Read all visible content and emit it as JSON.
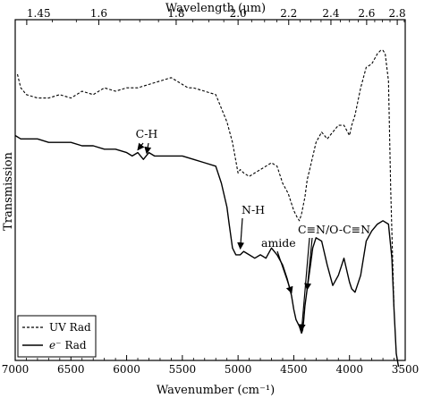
{
  "chart_data": {
    "type": "line",
    "title": "",
    "xlabel": "Wavenumber (cm⁻¹)",
    "x2label": "Wavelength (μm)",
    "ylabel": "Transmission",
    "xlim": [
      7000,
      3500
    ],
    "x_reversed": true,
    "ylim": [
      0,
      1
    ],
    "y_ticks_labeled": false,
    "grid": false,
    "legend_position": "bottom-left",
    "x_ticks": [
      7000,
      6500,
      6000,
      5500,
      5000,
      4500,
      4000,
      3500
    ],
    "x_tick_labels": [
      "7000",
      "6500",
      "6000",
      "5500",
      "5000",
      "4500",
      "4000",
      "3500"
    ],
    "x2_ticks": [
      1.45,
      1.6,
      1.8,
      2.0,
      2.2,
      2.4,
      2.6,
      2.8
    ],
    "x2_tick_labels": [
      "1.45",
      "1.6",
      "1.8",
      "2.0",
      "2.2",
      "2.4",
      "2.6",
      "2.8"
    ],
    "series": [
      {
        "name": "UV Rad",
        "style": "dashed",
        "x": [
          6980,
          6950,
          6900,
          6800,
          6700,
          6600,
          6500,
          6400,
          6300,
          6200,
          6100,
          6000,
          5900,
          5800,
          5700,
          5600,
          5500,
          5450,
          5400,
          5300,
          5200,
          5100,
          5050,
          5000,
          4980,
          4950,
          4900,
          4850,
          4800,
          4750,
          4700,
          4650,
          4600,
          4550,
          4500,
          4470,
          4450,
          4430,
          4400,
          4380,
          4350,
          4300,
          4250,
          4200,
          4150,
          4100,
          4050,
          4000,
          3980,
          3950,
          3900,
          3850,
          3800,
          3750,
          3720,
          3700,
          3680,
          3650,
          3630,
          3600
        ],
        "y": [
          0.84,
          0.8,
          0.78,
          0.77,
          0.77,
          0.78,
          0.77,
          0.79,
          0.78,
          0.8,
          0.79,
          0.8,
          0.8,
          0.81,
          0.82,
          0.83,
          0.81,
          0.8,
          0.8,
          0.79,
          0.78,
          0.7,
          0.64,
          0.55,
          0.56,
          0.55,
          0.54,
          0.55,
          0.56,
          0.57,
          0.58,
          0.57,
          0.52,
          0.49,
          0.44,
          0.42,
          0.41,
          0.43,
          0.48,
          0.53,
          0.57,
          0.64,
          0.67,
          0.65,
          0.67,
          0.69,
          0.69,
          0.66,
          0.69,
          0.72,
          0.8,
          0.86,
          0.87,
          0.9,
          0.91,
          0.91,
          0.9,
          0.82,
          0.5,
          0.15
        ]
      },
      {
        "name": "e⁻ Rad",
        "style": "solid",
        "x": [
          7000,
          6950,
          6900,
          6800,
          6700,
          6600,
          6500,
          6400,
          6300,
          6200,
          6100,
          6000,
          5950,
          5900,
          5850,
          5800,
          5750,
          5700,
          5600,
          5500,
          5400,
          5300,
          5200,
          5150,
          5100,
          5080,
          5050,
          5020,
          5000,
          4980,
          4950,
          4900,
          4850,
          4800,
          4750,
          4700,
          4650,
          4600,
          4560,
          4520,
          4500,
          4480,
          4450,
          4430,
          4420,
          4410,
          4400,
          4380,
          4350,
          4330,
          4300,
          4250,
          4200,
          4150,
          4100,
          4050,
          4000,
          3980,
          3950,
          3900,
          3850,
          3800,
          3750,
          3700,
          3650,
          3620,
          3600,
          3580,
          3560
        ],
        "y": [
          0.66,
          0.65,
          0.65,
          0.65,
          0.64,
          0.64,
          0.64,
          0.63,
          0.63,
          0.62,
          0.62,
          0.61,
          0.6,
          0.61,
          0.59,
          0.61,
          0.6,
          0.6,
          0.6,
          0.6,
          0.59,
          0.58,
          0.57,
          0.52,
          0.45,
          0.4,
          0.33,
          0.31,
          0.31,
          0.31,
          0.32,
          0.31,
          0.3,
          0.31,
          0.3,
          0.33,
          0.31,
          0.28,
          0.24,
          0.19,
          0.15,
          0.12,
          0.1,
          0.08,
          0.09,
          0.12,
          0.16,
          0.21,
          0.28,
          0.33,
          0.36,
          0.35,
          0.28,
          0.22,
          0.25,
          0.3,
          0.23,
          0.21,
          0.2,
          0.25,
          0.35,
          0.38,
          0.4,
          0.41,
          0.4,
          0.3,
          0.15,
          0.02,
          -0.03
        ]
      }
    ],
    "annotations": [
      {
        "text": "C-H",
        "arrow_targets": [
          [
            5900,
            0.61
          ],
          [
            5820,
            0.6
          ]
        ]
      },
      {
        "text": "N-H",
        "arrow_targets": [
          [
            4980,
            0.32
          ]
        ]
      },
      {
        "text": "amide",
        "arrow_targets": [
          [
            4520,
            0.19
          ]
        ]
      },
      {
        "text": "C≡N/O-C≡N",
        "arrow_targets": [
          [
            4430,
            0.08
          ],
          [
            4380,
            0.2
          ]
        ]
      }
    ]
  },
  "legend": {
    "entries": [
      {
        "prefix": "",
        "label": "UV Rad",
        "style": "dashed"
      },
      {
        "prefix": "e⁻",
        "label": "Rad",
        "style": "solid"
      }
    ]
  }
}
